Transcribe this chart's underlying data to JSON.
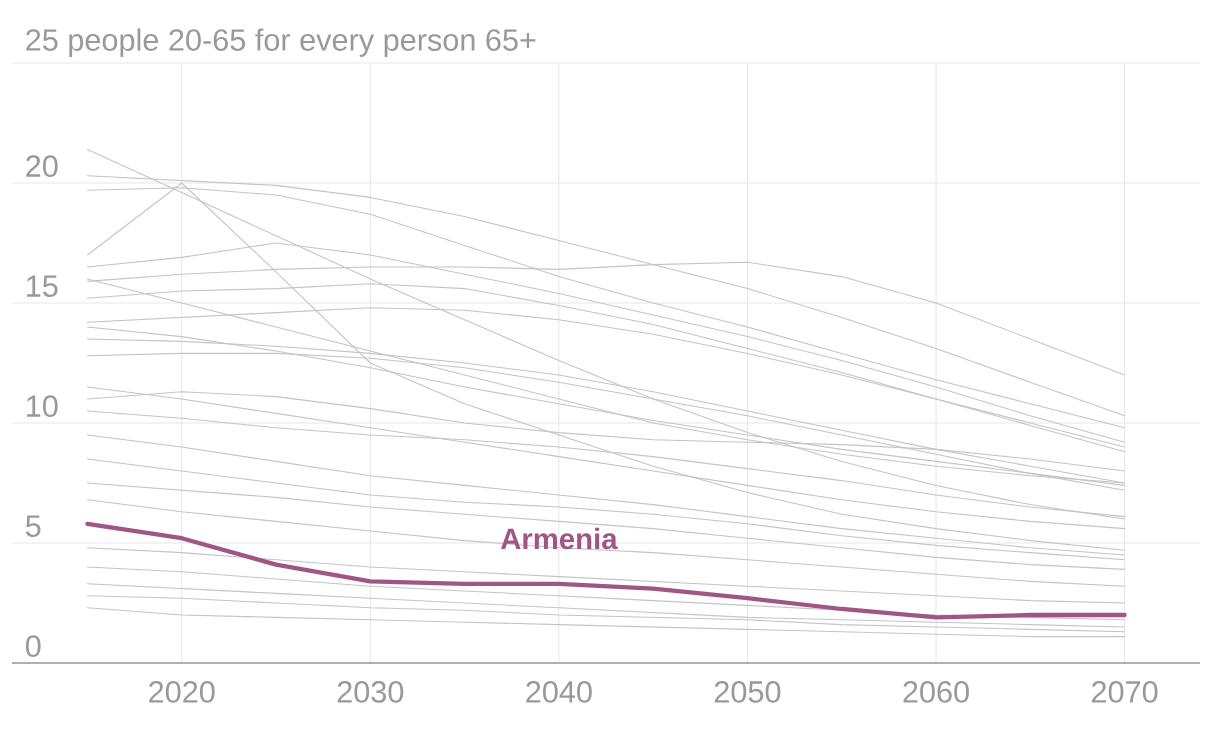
{
  "chart_data": {
    "type": "line",
    "x": [
      2015,
      2020,
      2025,
      2030,
      2035,
      2040,
      2045,
      2050,
      2055,
      2060,
      2065,
      2070
    ],
    "xlim": [
      2011,
      2074
    ],
    "xticks": [
      2020,
      2030,
      2040,
      2050,
      2060,
      2070
    ],
    "ylim": [
      0,
      25
    ],
    "yticks": [
      0,
      5,
      10,
      15,
      20,
      {
        "value": 25,
        "label": "25 people 20-65 for every person 65+"
      }
    ],
    "grid": true,
    "series": [
      {
        "color": "#c4c4c4",
        "values": [
          20.3,
          20.1,
          19.9,
          19.4,
          18.6,
          17.6,
          16.6,
          15.6,
          14.4,
          13.1,
          11.7,
          10.3
        ]
      },
      {
        "color": "#c4c4c4",
        "values": [
          21.4,
          19.6,
          17.8,
          16.0,
          14.3,
          12.6,
          11.0,
          9.6,
          8.4,
          7.4,
          6.6,
          6.0
        ]
      },
      {
        "color": "#c4c4c4",
        "values": [
          17.0,
          20.0,
          16.3,
          12.5,
          10.8,
          9.5,
          8.2,
          7.1,
          6.2,
          5.6,
          5.1,
          4.7
        ]
      },
      {
        "color": "#c4c4c4",
        "values": [
          19.7,
          19.8,
          19.5,
          18.7,
          17.4,
          16.1,
          15.0,
          14.0,
          12.9,
          11.8,
          10.8,
          9.8
        ]
      },
      {
        "color": "#c4c4c4",
        "values": [
          15.9,
          16.2,
          16.4,
          16.5,
          16.5,
          16.4,
          16.6,
          16.7,
          16.1,
          15.0,
          13.5,
          12.0
        ]
      },
      {
        "color": "#c4c4c4",
        "values": [
          16.5,
          16.9,
          17.5,
          17.0,
          16.2,
          15.4,
          14.5,
          13.6,
          12.6,
          11.5,
          10.3,
          9.2
        ]
      },
      {
        "color": "#c4c4c4",
        "values": [
          15.2,
          15.5,
          15.6,
          15.8,
          15.6,
          14.9,
          14.1,
          13.1,
          12.1,
          11.0,
          9.9,
          8.8
        ]
      },
      {
        "color": "#c4c4c4",
        "values": [
          14.2,
          14.4,
          14.6,
          14.8,
          14.7,
          14.3,
          13.7,
          12.9,
          12.0,
          11.0,
          10.0,
          9.0
        ]
      },
      {
        "color": "#c4c4c4",
        "values": [
          13.5,
          13.4,
          13.2,
          12.9,
          12.5,
          12.0,
          11.3,
          10.5,
          9.7,
          8.9,
          8.2,
          7.5
        ]
      },
      {
        "color": "#c4c4c4",
        "values": [
          12.8,
          12.9,
          12.9,
          12.7,
          12.3,
          11.7,
          11.0,
          10.3,
          9.5,
          8.7,
          7.9,
          7.2
        ]
      },
      {
        "color": "#c4c4c4",
        "values": [
          16.0,
          15.0,
          14.0,
          13.0,
          12.0,
          11.0,
          10.0,
          9.3,
          8.7,
          8.2,
          7.8,
          7.5
        ]
      },
      {
        "color": "#c4c4c4",
        "values": [
          11.0,
          11.3,
          11.1,
          10.6,
          10.0,
          9.6,
          9.3,
          9.2,
          9.1,
          8.9,
          8.5,
          8.0
        ]
      },
      {
        "color": "#c4c4c4",
        "values": [
          10.5,
          10.2,
          9.8,
          9.5,
          9.3,
          9.0,
          8.6,
          8.1,
          7.6,
          7.0,
          6.5,
          6.1
        ]
      },
      {
        "color": "#c4c4c4",
        "values": [
          9.5,
          9.0,
          8.4,
          7.8,
          7.4,
          7.0,
          6.6,
          6.1,
          5.6,
          5.2,
          4.8,
          4.5
        ]
      },
      {
        "color": "#c4c4c4",
        "values": [
          8.5,
          8.0,
          7.5,
          7.0,
          6.7,
          6.5,
          6.2,
          5.8,
          5.3,
          4.9,
          4.6,
          4.3
        ]
      },
      {
        "color": "#c4c4c4",
        "values": [
          7.5,
          7.2,
          6.9,
          6.5,
          6.2,
          5.9,
          5.6,
          5.2,
          4.8,
          4.4,
          4.1,
          3.9
        ]
      },
      {
        "color": "#c4c4c4",
        "values": [
          6.8,
          6.3,
          5.9,
          5.5,
          5.1,
          4.8,
          4.6,
          4.3,
          4.0,
          3.7,
          3.4,
          3.2
        ]
      },
      {
        "color": "#c4c4c4",
        "values": [
          4.8,
          4.6,
          4.3,
          4.0,
          3.8,
          3.6,
          3.4,
          3.2,
          3.0,
          2.8,
          2.6,
          2.5
        ]
      },
      {
        "color": "#c4c4c4",
        "values": [
          4.0,
          3.8,
          3.5,
          3.2,
          3.0,
          2.8,
          2.6,
          2.4,
          2.2,
          2.0,
          1.9,
          1.8
        ]
      },
      {
        "color": "#c4c4c4",
        "values": [
          3.3,
          3.1,
          2.9,
          2.7,
          2.5,
          2.3,
          2.1,
          1.9,
          1.8,
          1.7,
          1.6,
          1.5
        ]
      },
      {
        "color": "#c4c4c4",
        "values": [
          2.8,
          2.7,
          2.5,
          2.3,
          2.2,
          2.0,
          1.9,
          1.8,
          1.6,
          1.5,
          1.4,
          1.3
        ]
      },
      {
        "color": "#c4c4c4",
        "values": [
          2.3,
          2.0,
          1.9,
          1.8,
          1.7,
          1.6,
          1.5,
          1.4,
          1.3,
          1.2,
          1.1,
          1.1
        ]
      },
      {
        "color": "#c4c4c4",
        "values": [
          11.5,
          11.0,
          10.4,
          9.8,
          9.2,
          8.6,
          8.0,
          7.4,
          6.8,
          6.3,
          5.9,
          5.6
        ]
      },
      {
        "color": "#c4c4c4",
        "values": [
          14.0,
          13.6,
          13.0,
          12.3,
          11.5,
          10.8,
          10.1,
          9.5,
          8.9,
          8.4,
          7.9,
          7.4
        ]
      },
      {
        "name": "Armenia",
        "color": "#a05585",
        "values": [
          5.8,
          5.2,
          4.1,
          3.4,
          3.3,
          3.3,
          3.1,
          2.7,
          2.25,
          1.9,
          2.0,
          2.0
        ]
      }
    ]
  }
}
